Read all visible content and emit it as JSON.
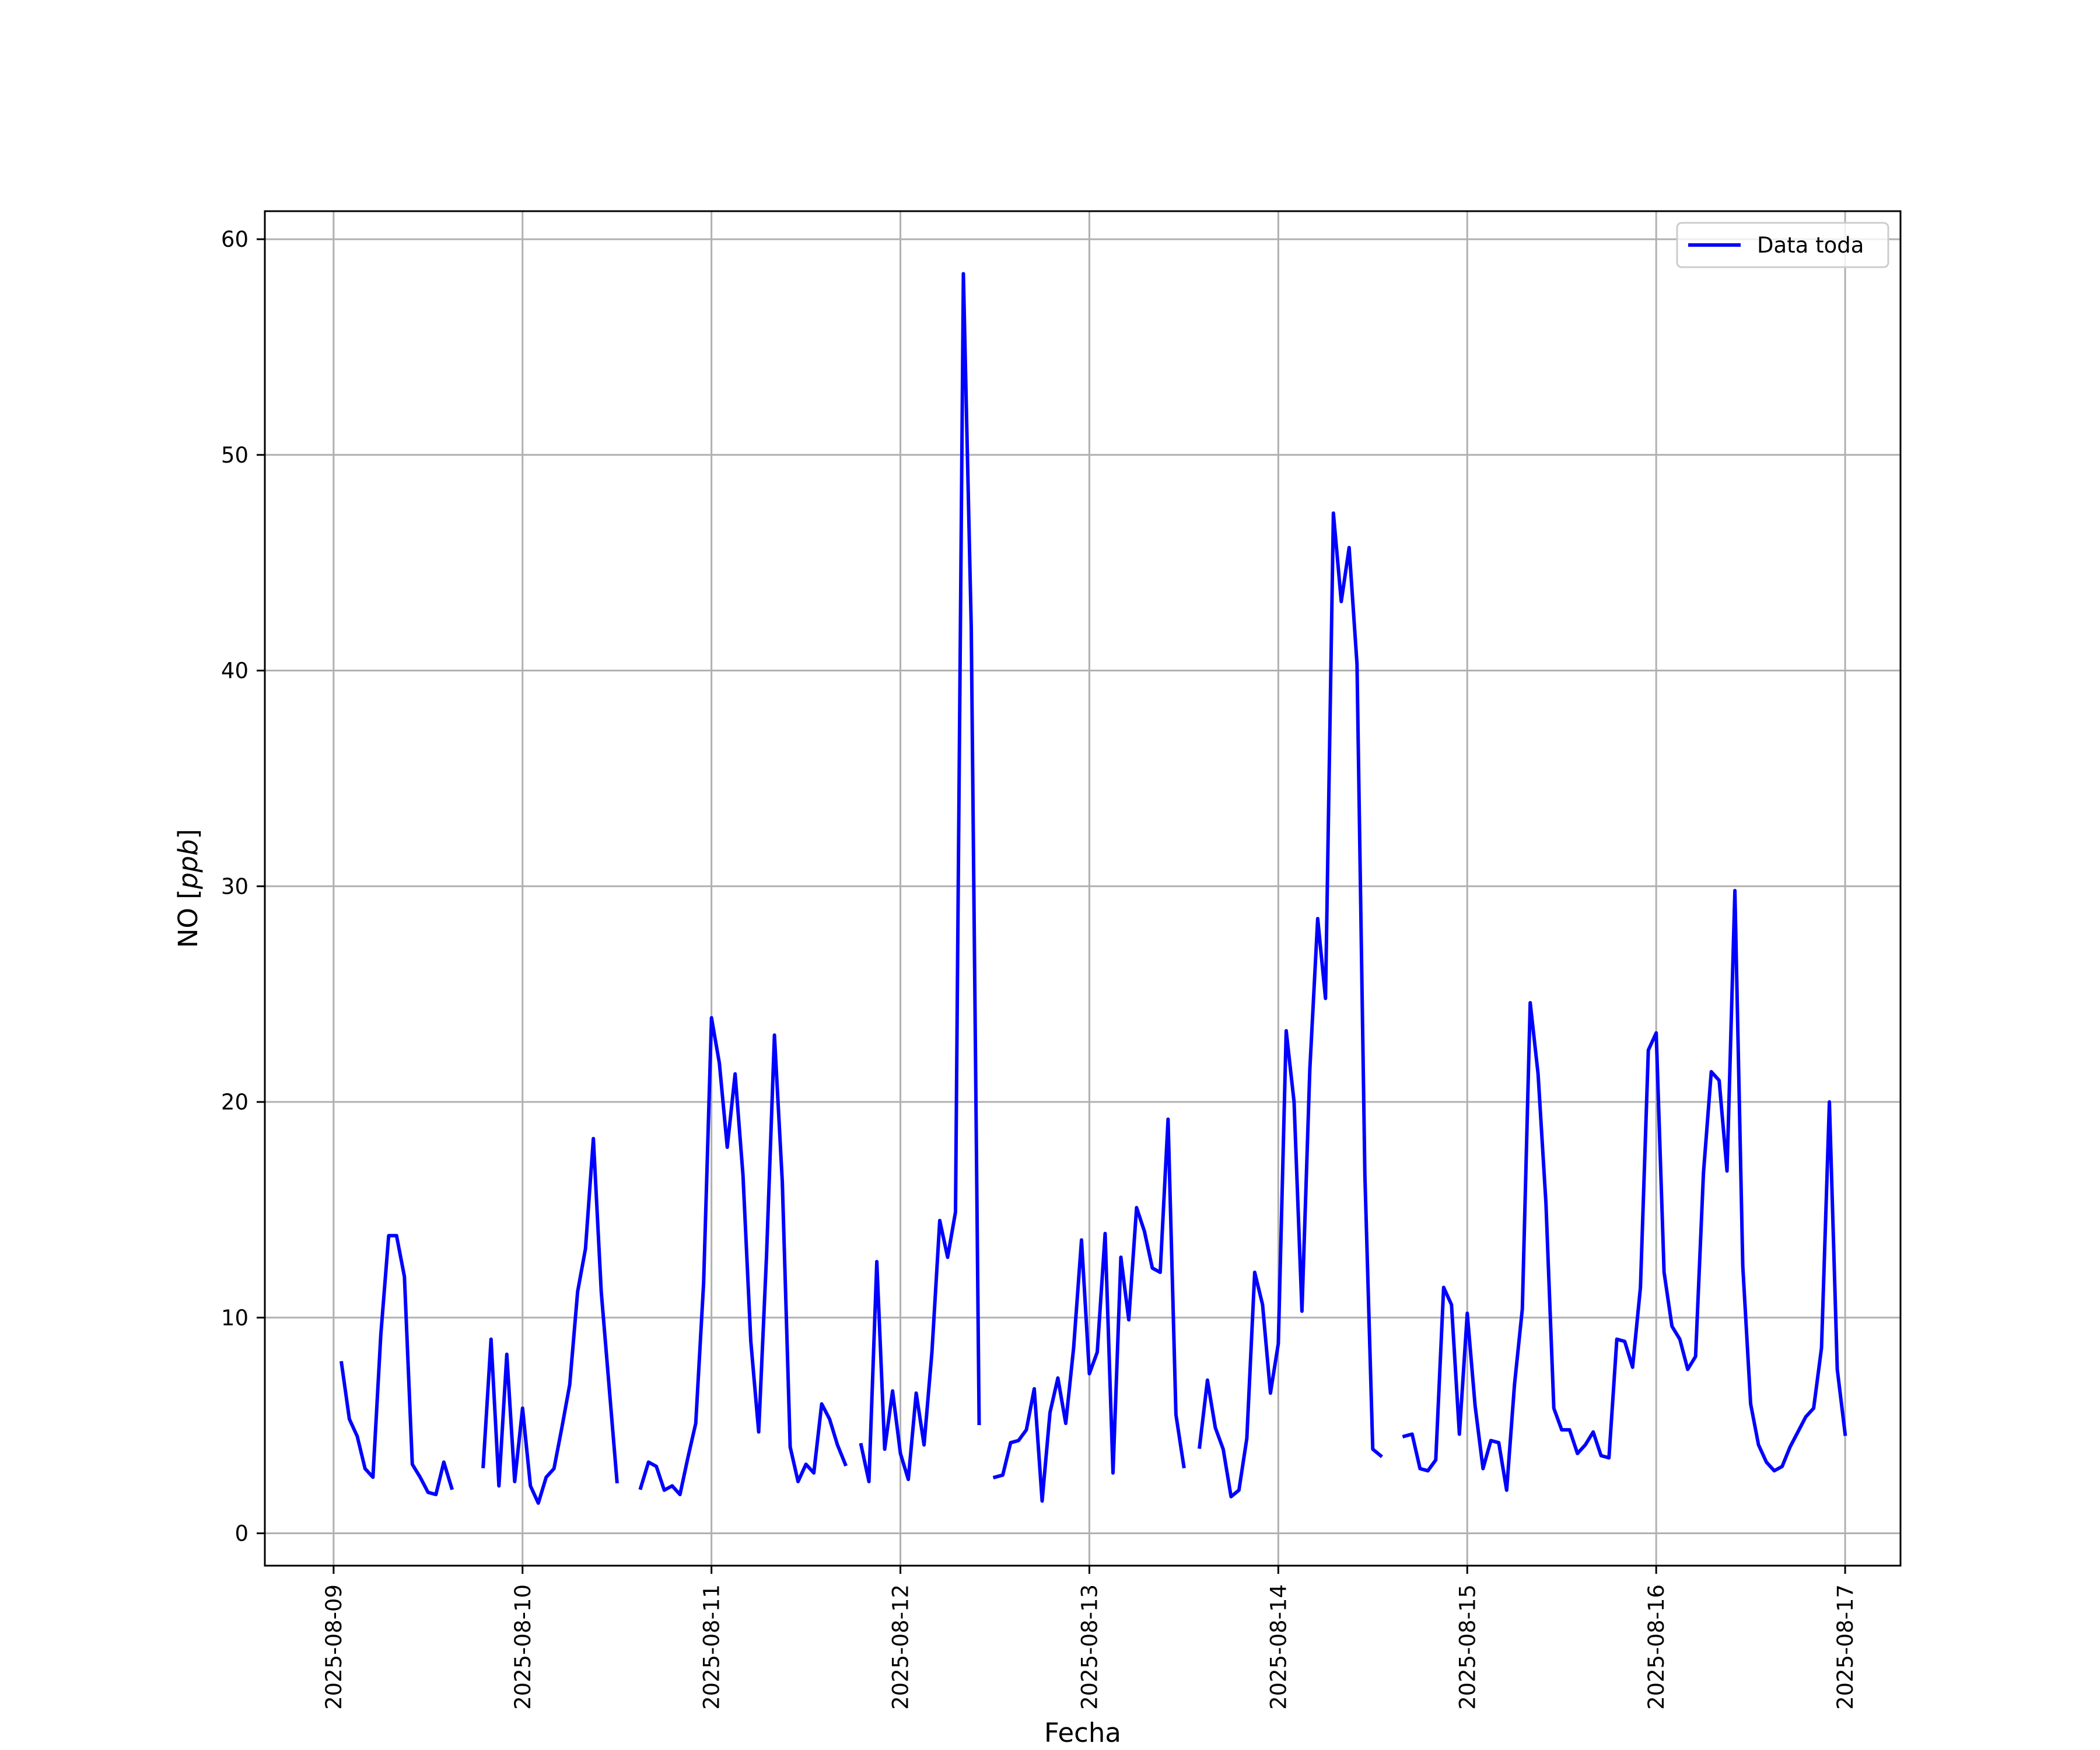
{
  "chart_data": {
    "type": "line",
    "xlabel": "Fecha",
    "ylabel": "NO [ppb]",
    "ylabel_main": "NO ",
    "ylabel_open": "[",
    "ylabel_unit": "ppb",
    "ylabel_close": "]",
    "ylim": [
      -1.5,
      61.3
    ],
    "xlim": [
      "2025-08-08T15:16",
      "2025-08-17T07:02"
    ],
    "x_ticks": [
      "2025-08-09",
      "2025-08-10",
      "2025-08-11",
      "2025-08-12",
      "2025-08-13",
      "2025-08-14",
      "2025-08-15",
      "2025-08-16",
      "2025-08-17"
    ],
    "y_ticks": [
      0,
      10,
      20,
      30,
      40,
      50,
      60
    ],
    "grid": true,
    "legend": {
      "position": "top-right",
      "entries": [
        "Data toda"
      ]
    },
    "series": [
      {
        "name": "Data toda",
        "color": "#0000ff",
        "x": [
          "2025-08-09T01:00",
          "2025-08-09T02:00",
          "2025-08-09T03:00",
          "2025-08-09T04:00",
          "2025-08-09T05:00",
          "2025-08-09T06:00",
          "2025-08-09T07:00",
          "2025-08-09T08:00",
          "2025-08-09T09:00",
          "2025-08-09T10:00",
          "2025-08-09T11:00",
          "2025-08-09T12:00",
          "2025-08-09T13:00",
          "2025-08-09T14:00",
          "2025-08-09T15:00",
          null,
          "2025-08-09T19:00",
          "2025-08-09T20:00",
          "2025-08-09T21:00",
          "2025-08-09T22:00",
          "2025-08-09T23:00",
          "2025-08-10T00:00",
          "2025-08-10T01:00",
          "2025-08-10T02:00",
          "2025-08-10T03:00",
          "2025-08-10T04:00",
          "2025-08-10T05:00",
          "2025-08-10T06:00",
          "2025-08-10T07:00",
          "2025-08-10T08:00",
          "2025-08-10T09:00",
          "2025-08-10T10:00",
          "2025-08-10T11:00",
          "2025-08-10T12:00",
          null,
          "2025-08-10T15:00",
          "2025-08-10T16:00",
          "2025-08-10T17:00",
          "2025-08-10T18:00",
          "2025-08-10T19:00",
          "2025-08-10T20:00",
          "2025-08-10T21:00",
          "2025-08-10T22:00",
          "2025-08-10T23:00",
          "2025-08-11T00:00",
          "2025-08-11T01:00",
          "2025-08-11T02:00",
          "2025-08-11T03:00",
          "2025-08-11T04:00",
          "2025-08-11T05:00",
          "2025-08-11T06:00",
          "2025-08-11T07:00",
          "2025-08-11T08:00",
          "2025-08-11T09:00",
          "2025-08-11T10:00",
          "2025-08-11T11:00",
          "2025-08-11T12:00",
          "2025-08-11T13:00",
          "2025-08-11T14:00",
          "2025-08-11T15:00",
          "2025-08-11T16:00",
          "2025-08-11T17:00",
          null,
          "2025-08-11T19:00",
          "2025-08-11T20:00",
          "2025-08-11T21:00",
          "2025-08-11T22:00",
          "2025-08-11T23:00",
          "2025-08-12T00:00",
          "2025-08-12T01:00",
          "2025-08-12T02:00",
          "2025-08-12T03:00",
          "2025-08-12T04:00",
          "2025-08-12T05:00",
          "2025-08-12T06:00",
          "2025-08-12T07:00",
          "2025-08-12T08:00",
          "2025-08-12T09:00",
          "2025-08-12T10:00",
          null,
          "2025-08-12T12:00",
          "2025-08-12T13:00",
          "2025-08-12T14:00",
          "2025-08-12T15:00",
          "2025-08-12T16:00",
          "2025-08-12T17:00",
          "2025-08-12T18:00",
          "2025-08-12T19:00",
          "2025-08-12T20:00",
          "2025-08-12T21:00",
          "2025-08-12T22:00",
          "2025-08-12T23:00",
          "2025-08-13T00:00",
          "2025-08-13T01:00",
          "2025-08-13T02:00",
          "2025-08-13T03:00",
          "2025-08-13T04:00",
          "2025-08-13T05:00",
          "2025-08-13T06:00",
          "2025-08-13T07:00",
          "2025-08-13T08:00",
          "2025-08-13T09:00",
          "2025-08-13T10:00",
          "2025-08-13T11:00",
          "2025-08-13T12:00",
          null,
          "2025-08-13T14:00",
          "2025-08-13T15:00",
          "2025-08-13T16:00",
          "2025-08-13T17:00",
          "2025-08-13T18:00",
          "2025-08-13T19:00",
          "2025-08-13T20:00",
          "2025-08-13T21:00",
          "2025-08-13T22:00",
          "2025-08-13T23:00",
          "2025-08-14T00:00",
          "2025-08-14T01:00",
          "2025-08-14T02:00",
          "2025-08-14T03:00",
          "2025-08-14T04:00",
          "2025-08-14T05:00",
          "2025-08-14T06:00",
          "2025-08-14T07:00",
          "2025-08-14T08:00",
          "2025-08-14T09:00",
          "2025-08-14T10:00",
          "2025-08-14T11:00",
          "2025-08-14T12:00",
          "2025-08-14T13:00",
          null,
          "2025-08-14T16:00",
          "2025-08-14T17:00",
          "2025-08-14T18:00",
          "2025-08-14T19:00",
          "2025-08-14T20:00",
          "2025-08-14T21:00",
          "2025-08-14T22:00",
          "2025-08-14T23:00",
          "2025-08-15T00:00",
          "2025-08-15T01:00",
          "2025-08-15T02:00",
          "2025-08-15T03:00",
          "2025-08-15T04:00",
          "2025-08-15T05:00",
          "2025-08-15T06:00",
          "2025-08-15T07:00",
          "2025-08-15T08:00",
          "2025-08-15T09:00",
          "2025-08-15T10:00",
          "2025-08-15T11:00",
          "2025-08-15T12:00",
          "2025-08-15T13:00",
          "2025-08-15T14:00",
          "2025-08-15T15:00",
          "2025-08-15T16:00",
          "2025-08-15T17:00",
          "2025-08-15T18:00",
          "2025-08-15T19:00",
          "2025-08-15T20:00",
          "2025-08-15T21:00",
          "2025-08-15T22:00",
          "2025-08-15T23:00",
          "2025-08-16T00:00",
          "2025-08-16T01:00",
          "2025-08-16T02:00",
          "2025-08-16T03:00",
          "2025-08-16T04:00",
          "2025-08-16T05:00",
          "2025-08-16T06:00",
          "2025-08-16T07:00",
          "2025-08-16T08:00",
          "2025-08-16T09:00",
          "2025-08-16T10:00",
          "2025-08-16T11:00",
          "2025-08-16T12:00",
          "2025-08-16T13:00",
          "2025-08-16T14:00",
          "2025-08-16T15:00",
          "2025-08-16T16:00",
          "2025-08-16T17:00",
          "2025-08-16T18:00",
          "2025-08-16T19:00",
          "2025-08-16T20:00",
          "2025-08-16T21:00",
          "2025-08-16T22:00",
          "2025-08-16T23:00",
          "2025-08-17T00:00"
        ],
        "values": [
          7.9,
          5.3,
          4.5,
          3.0,
          2.6,
          9.2,
          13.8,
          13.8,
          11.9,
          3.2,
          2.6,
          1.9,
          1.8,
          3.3,
          2.1,
          null,
          3.1,
          9.0,
          2.2,
          8.3,
          2.4,
          5.8,
          2.2,
          1.4,
          2.6,
          3.0,
          4.9,
          6.9,
          11.2,
          13.2,
          18.3,
          11.2,
          6.8,
          2.4,
          null,
          2.1,
          3.3,
          3.1,
          2.0,
          2.2,
          1.8,
          3.5,
          5.1,
          11.6,
          23.9,
          21.8,
          17.9,
          21.3,
          16.6,
          8.9,
          4.7,
          12.9,
          23.1,
          16.3,
          4.0,
          2.4,
          3.2,
          2.8,
          6.0,
          5.3,
          4.1,
          3.2,
          null,
          4.1,
          2.4,
          12.6,
          3.9,
          6.6,
          3.7,
          2.5,
          6.5,
          4.1,
          8.4,
          14.5,
          12.8,
          14.9,
          58.4,
          42.0,
          5.1,
          null,
          2.6,
          2.7,
          4.2,
          4.3,
          4.8,
          6.7,
          1.5,
          5.6,
          7.2,
          5.1,
          8.6,
          13.6,
          7.4,
          8.4,
          13.9,
          2.8,
          12.8,
          9.9,
          15.1,
          14.0,
          12.3,
          12.1,
          19.2,
          5.5,
          3.1,
          null,
          4.0,
          7.1,
          4.9,
          3.9,
          1.7,
          2.0,
          4.4,
          12.1,
          10.6,
          6.5,
          8.8,
          23.3,
          20.0,
          10.3,
          21.5,
          28.5,
          24.8,
          47.3,
          43.2,
          45.7,
          40.3,
          16.6,
          3.9,
          3.6,
          null,
          4.5,
          4.6,
          3.0,
          2.9,
          3.4,
          11.4,
          10.6,
          4.6,
          10.2,
          5.9,
          3.0,
          4.3,
          4.2,
          2.0,
          6.9,
          10.4,
          24.6,
          21.3,
          15.3,
          5.8,
          4.8,
          4.8,
          3.7,
          4.1,
          4.7,
          3.6,
          3.5,
          9.0,
          8.9,
          7.7,
          11.4,
          22.4,
          23.2,
          12.1,
          9.6,
          9.0,
          7.6,
          8.2,
          16.7,
          21.4,
          21.0,
          16.8,
          29.8,
          12.4,
          6.0,
          4.1,
          3.3,
          2.9,
          3.1,
          4.0,
          4.7,
          5.4,
          5.8,
          8.6,
          20.0,
          7.6,
          4.6
        ]
      }
    ]
  }
}
